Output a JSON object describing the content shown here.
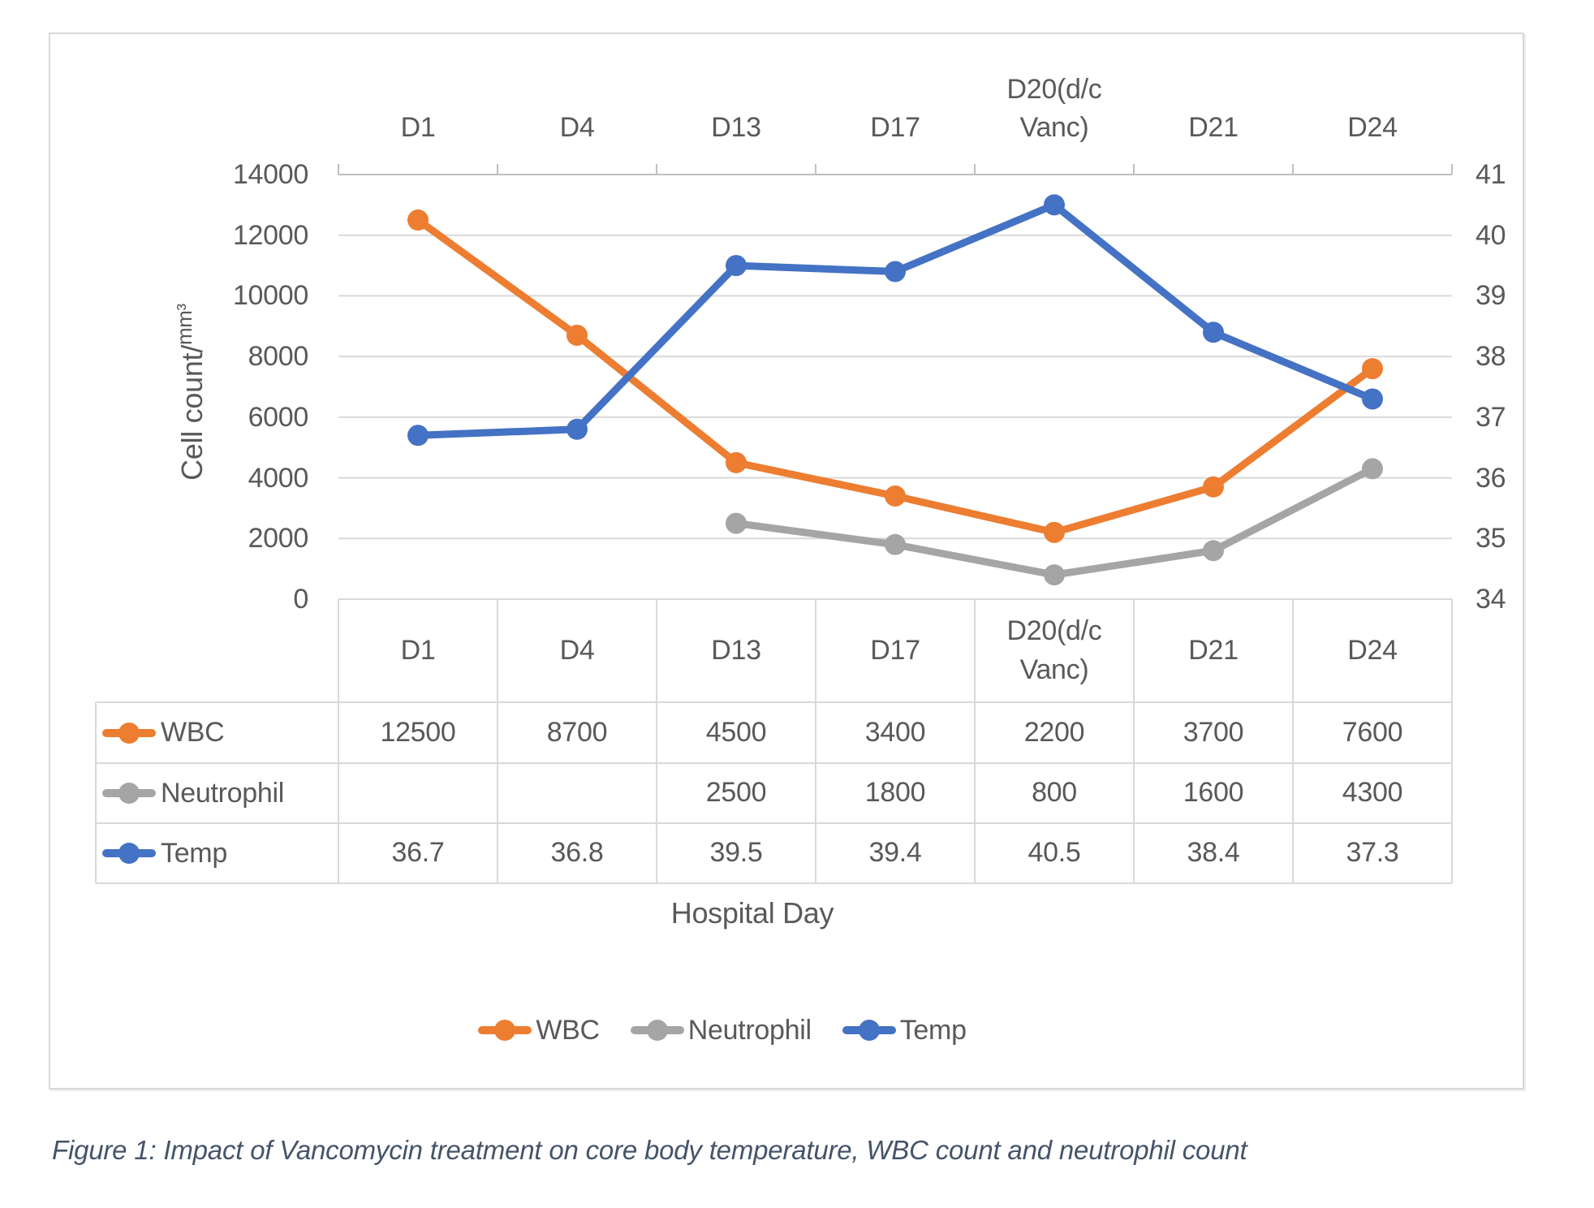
{
  "figure": {
    "caption": "Figure 1: Impact of Vancomycin treatment on core body temperature, WBC count and neutrophil count"
  },
  "chart_data": {
    "type": "line",
    "title": "",
    "categories": [
      "D1",
      "D4",
      "D13",
      "D17",
      "D20(d/c\nVanc)",
      "D21",
      "D24"
    ],
    "series": [
      {
        "name": "WBC",
        "axis": "left",
        "color": "#ED7D31",
        "values": [
          12500,
          8700,
          4500,
          3400,
          2200,
          3700,
          7600
        ]
      },
      {
        "name": "Neutrophil",
        "axis": "left",
        "color": "#A5A5A5",
        "values": [
          null,
          null,
          2500,
          1800,
          800,
          1600,
          4300
        ]
      },
      {
        "name": "Temp",
        "axis": "right",
        "color": "#4472C4",
        "values": [
          36.7,
          36.8,
          39.5,
          39.4,
          40.5,
          38.4,
          37.3
        ]
      }
    ],
    "x_title": "Hospital Day",
    "y_left": {
      "title": "Cell count/",
      "title_sup": "mm³",
      "min": 0,
      "max": 14000,
      "step": 2000,
      "ticks": [
        "14000",
        "12000",
        "10000",
        "8000",
        "6000",
        "4000",
        "2000",
        "0"
      ]
    },
    "y_right": {
      "min": 34,
      "max": 41,
      "step": 1,
      "ticks": [
        "41",
        "40",
        "39",
        "38",
        "37",
        "36",
        "35",
        "34"
      ]
    },
    "gridlines": true,
    "legend_position": "bottom",
    "category_axis_position": "top",
    "table_values": [
      [
        "12500",
        "8700",
        "4500",
        "3400",
        "2200",
        "3700",
        "7600"
      ],
      [
        "",
        "",
        "2500",
        "1800",
        "800",
        "1600",
        "4300"
      ],
      [
        "36.7",
        "36.8",
        "39.5",
        "39.4",
        "40.5",
        "38.4",
        "37.3"
      ]
    ]
  },
  "palette": {
    "grid": "#D9D9D9",
    "axis_line": "#BFBFBF",
    "text": "#595959",
    "caption_text": "#44546A"
  }
}
